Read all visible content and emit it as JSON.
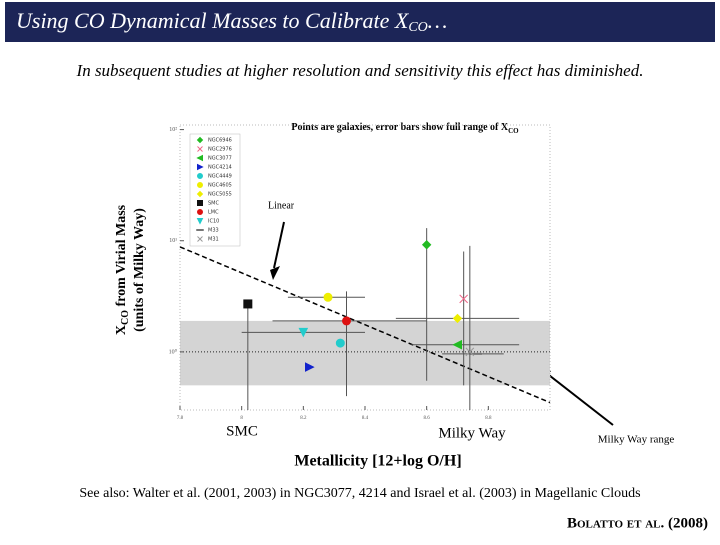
{
  "slide": {
    "title": "Using CO Dynamical Masses to Calibrate X",
    "title_sub": "CO",
    "title_end": "…",
    "subtitle": "In subsequent studies at higher resolution and sensitivity this effect has diminished.",
    "footer": "See also: Walter et al. (2001, 2003) in NGC3077, 4214 and Israel et al. (2003) in Magellanic Clouds",
    "credit": "Bolatto et al. (2008)"
  },
  "chart_data": {
    "type": "scatter",
    "title": "Points are galaxies, error bars show full range of X",
    "title_sub": "CO",
    "y_label_1": "X",
    "y_label_1_sub": "CO",
    "y_label_1_end": " from Virial Mass",
    "y_label_2": "(units of Milky Way)",
    "x_label": "Metallicity [12+log O/H]",
    "annotations": [
      "Linear",
      "SMC",
      "Milky Way",
      "Milky Way range"
    ],
    "xlim": [
      7.8,
      9.0
    ],
    "xticks": [
      7.8,
      8.0,
      8.2,
      8.4,
      8.6,
      8.8
    ],
    "ylim": [
      0.3,
      110
    ],
    "log_y": true,
    "yticks": [
      {
        "value": 1,
        "label": "10⁰"
      },
      {
        "value": 10,
        "label": "10¹"
      },
      {
        "value": 100,
        "label": "10²"
      }
    ],
    "mw_range": [
      0.5,
      1.9
    ],
    "mw_value": 1,
    "fit": {
      "x": [
        7.8,
        9.0
      ],
      "y": [
        8.8,
        0.35
      ]
    },
    "series": [
      {
        "name": "NGC6946",
        "color": "#22bb22",
        "marker": "diamond",
        "x": [
          8.6
        ],
        "values": [
          9.2
        ],
        "yrange": [
          0.55,
          13
        ]
      },
      {
        "name": "NGC2976",
        "color": "#ee6688",
        "marker": "x",
        "x": [
          8.72
        ],
        "values": [
          3.0
        ],
        "yrange": [
          0.5,
          8
        ]
      },
      {
        "name": "NGC3077",
        "color": "#22bb22",
        "marker": "triangle-left",
        "x": [
          8.7
        ],
        "values": [
          1.16
        ],
        "xrange": [
          8.55,
          8.9
        ]
      },
      {
        "name": "NGC4214",
        "color": "#1122cc",
        "marker": "triangle-right",
        "x": [
          8.22
        ],
        "values": [
          0.73
        ]
      },
      {
        "name": "NGC4449",
        "color": "#22cccc",
        "marker": "circle",
        "x": [
          8.32
        ],
        "values": [
          1.2
        ]
      },
      {
        "name": "NGC4605",
        "color": "#eeee00",
        "marker": "circle",
        "x": [
          8.28
        ],
        "values": [
          3.1
        ],
        "xrange": [
          8.15,
          8.4
        ]
      },
      {
        "name": "NGC5055",
        "color": "#eeee00",
        "marker": "diamond",
        "x": [
          8.7
        ],
        "values": [
          2.0
        ],
        "xrange": [
          8.5,
          8.9
        ]
      },
      {
        "name": "SMC",
        "color": "#111111",
        "marker": "square",
        "x": [
          8.02
        ],
        "values": [
          2.7
        ],
        "yrange": [
          0.3,
          2.7
        ]
      },
      {
        "name": "LMC",
        "color": "#dd1111",
        "marker": "circle",
        "x": [
          8.34
        ],
        "values": [
          1.9
        ],
        "xrange": [
          8.1,
          8.6
        ],
        "yrange": [
          0.4,
          3.5
        ]
      },
      {
        "name": "IC10",
        "color": "#22cccc",
        "marker": "triangle-down",
        "x": [
          8.2
        ],
        "values": [
          1.5
        ],
        "xrange": [
          8.0,
          8.4
        ]
      },
      {
        "name": "M33",
        "color": "#777777",
        "marker": "dash",
        "x": [
          8.76
        ],
        "values": [
          0.96
        ],
        "xrange": [
          8.65,
          8.85
        ]
      },
      {
        "name": "M31",
        "color": "#999999",
        "marker": "x",
        "x": [
          8.74
        ],
        "values": [
          1.0
        ],
        "yrange": [
          0.3,
          9
        ]
      }
    ]
  }
}
